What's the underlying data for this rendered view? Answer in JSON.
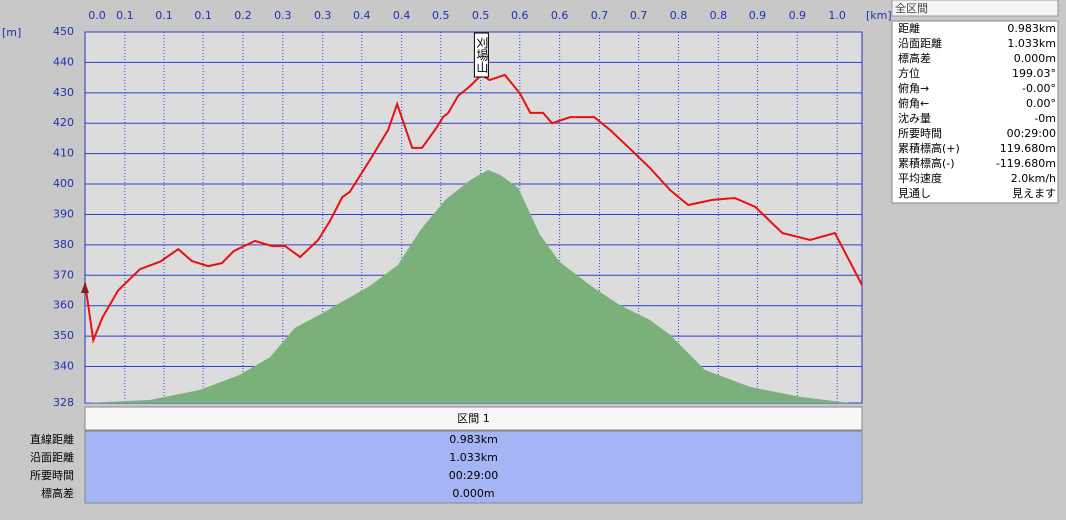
{
  "chart_data": {
    "type": "line",
    "y_unit": "[m]",
    "x_unit": "[km]",
    "annotation": "刈場山",
    "annotation_x": 0.527,
    "xlim": [
      0,
      1.033
    ],
    "ylim": [
      328,
      450
    ],
    "xticks": [
      {
        "value": 0,
        "label": "0.0"
      },
      {
        "value": 0.053,
        "label": "0.1"
      },
      {
        "value": 0.105,
        "label": "0.1"
      },
      {
        "value": 0.157,
        "label": "0.1"
      },
      {
        "value": 0.21,
        "label": "0.2"
      },
      {
        "value": 0.263,
        "label": "0.3"
      },
      {
        "value": 0.316,
        "label": "0.3"
      },
      {
        "value": 0.368,
        "label": "0.4"
      },
      {
        "value": 0.421,
        "label": "0.4"
      },
      {
        "value": 0.473,
        "label": "0.5"
      },
      {
        "value": 0.526,
        "label": "0.5"
      },
      {
        "value": 0.578,
        "label": "0.6"
      },
      {
        "value": 0.631,
        "label": "0.6"
      },
      {
        "value": 0.684,
        "label": "0.7"
      },
      {
        "value": 0.736,
        "label": "0.7"
      },
      {
        "value": 0.789,
        "label": "0.8"
      },
      {
        "value": 0.842,
        "label": "0.8"
      },
      {
        "value": 0.894,
        "label": "0.9"
      },
      {
        "value": 0.947,
        "label": "0.9"
      },
      {
        "value": 1.0,
        "label": "1.0"
      }
    ],
    "yticks": [
      328,
      340,
      350,
      360,
      370,
      380,
      390,
      400,
      410,
      420,
      430,
      440,
      450
    ],
    "grid": true,
    "series": [
      {
        "style": "area",
        "color": "#7ab07a",
        "x": [
          0,
          0.086,
          0.153,
          0.206,
          0.246,
          0.279,
          0.312,
          0.346,
          0.379,
          0.416,
          0.446,
          0.479,
          0.512,
          0.536,
          0.552,
          0.576,
          0.605,
          0.631,
          0.671,
          0.711,
          0.751,
          0.778,
          0.824,
          0.884,
          0.951,
          1.017,
          1.033
        ],
        "values": [
          328,
          329,
          332.3,
          337.3,
          343.1,
          352.7,
          357,
          361.9,
          366.5,
          373.4,
          384.9,
          394.8,
          401.3,
          404.6,
          403,
          398.7,
          383.3,
          374.4,
          366.8,
          360.2,
          355.3,
          350.4,
          338.9,
          333.3,
          330,
          328,
          328
        ]
      },
      {
        "style": "line",
        "color": "#e81010",
        "x": [
          0,
          0.011,
          0.023,
          0.044,
          0.073,
          0.1,
          0.124,
          0.142,
          0.164,
          0.182,
          0.198,
          0.226,
          0.249,
          0.266,
          0.286,
          0.31,
          0.326,
          0.342,
          0.352,
          0.379,
          0.403,
          0.415,
          0.421,
          0.435,
          0.448,
          0.467,
          0.476,
          0.483,
          0.496,
          0.512,
          0.527,
          0.538,
          0.558,
          0.578,
          0.592,
          0.609,
          0.621,
          0.645,
          0.677,
          0.698,
          0.722,
          0.751,
          0.778,
          0.802,
          0.834,
          0.864,
          0.891,
          0.927,
          0.964,
          0.997,
          1.033
        ],
        "values": [
          367.5,
          348.7,
          356,
          365,
          372,
          374.5,
          378.6,
          374.7,
          373,
          374,
          378,
          381.3,
          379.6,
          379.6,
          376,
          381.6,
          388,
          395.7,
          397.4,
          408,
          417.8,
          426.3,
          422,
          411.9,
          411.9,
          418.4,
          422,
          423.4,
          429,
          432.2,
          435.9,
          434.2,
          435.9,
          429.9,
          423.4,
          423.4,
          420,
          422,
          422,
          417.8,
          412.2,
          405.3,
          398,
          393.1,
          394.8,
          395.4,
          392.5,
          383.9,
          381.6,
          383.9,
          366.8
        ]
      }
    ]
  },
  "stats_panel": {
    "title": "全区間",
    "rows": [
      [
        "距離",
        "0.983km"
      ],
      [
        "沿面距離",
        "1.033km"
      ],
      [
        "標高差",
        "0.000m"
      ],
      [
        "方位",
        "199.03°"
      ],
      [
        "俯角→",
        "-0.00°"
      ],
      [
        "俯角←",
        "0.00°"
      ],
      [
        "沈み量",
        "-0m"
      ],
      [
        "所要時間",
        "00:29:00"
      ],
      [
        "累積標高(+)",
        "119.680m"
      ],
      [
        "累積標高(-)",
        "-119.680m"
      ],
      [
        "平均速度",
        "2.0km/h"
      ],
      [
        "見通し",
        "見えます"
      ]
    ]
  },
  "section_table": {
    "header": "区間 1",
    "rows": [
      [
        "直線距離",
        "0.983km"
      ],
      [
        "沿面距離",
        "1.033km"
      ],
      [
        "所要時間",
        "00:29:00"
      ],
      [
        "標高差",
        "0.000m"
      ]
    ]
  }
}
